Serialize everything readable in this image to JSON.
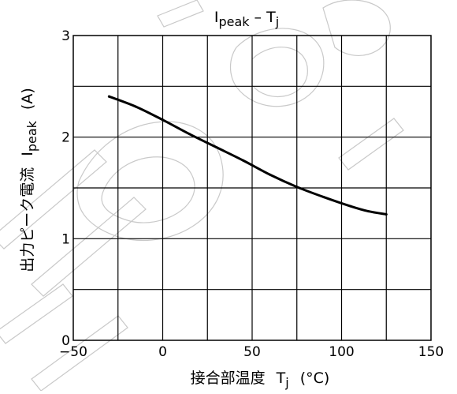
{
  "chart_data": {
    "type": "line",
    "title": {
      "base": "I",
      "sub": "peak",
      "mid": " – T",
      "sub2": "j"
    },
    "xlabel": {
      "jp": "接合部温度",
      "sym": "T",
      "sub": "j",
      "unit": "(°C)"
    },
    "ylabel": {
      "jp": "出力ピーク電流",
      "sym": "I",
      "sub": "peak",
      "unit": "(A)"
    },
    "xlim": [
      -50,
      150
    ],
    "ylim": [
      0,
      3
    ],
    "x_ticks": [
      -50,
      0,
      50,
      100,
      150
    ],
    "y_ticks": [
      0,
      1,
      2,
      3
    ],
    "x_grid_step": 25,
    "y_grid_step": 0.5,
    "grid": true,
    "series": [
      {
        "x": [
          -30,
          -15,
          0,
          15,
          30,
          45,
          60,
          75,
          90,
          105,
          115,
          125
        ],
        "y": [
          2.4,
          2.3,
          2.17,
          2.03,
          1.9,
          1.77,
          1.63,
          1.51,
          1.41,
          1.32,
          1.27,
          1.24
        ]
      }
    ],
    "colors": {
      "line": "#000000",
      "grid": "#000000",
      "watermark": "#c9c9c9"
    }
  }
}
